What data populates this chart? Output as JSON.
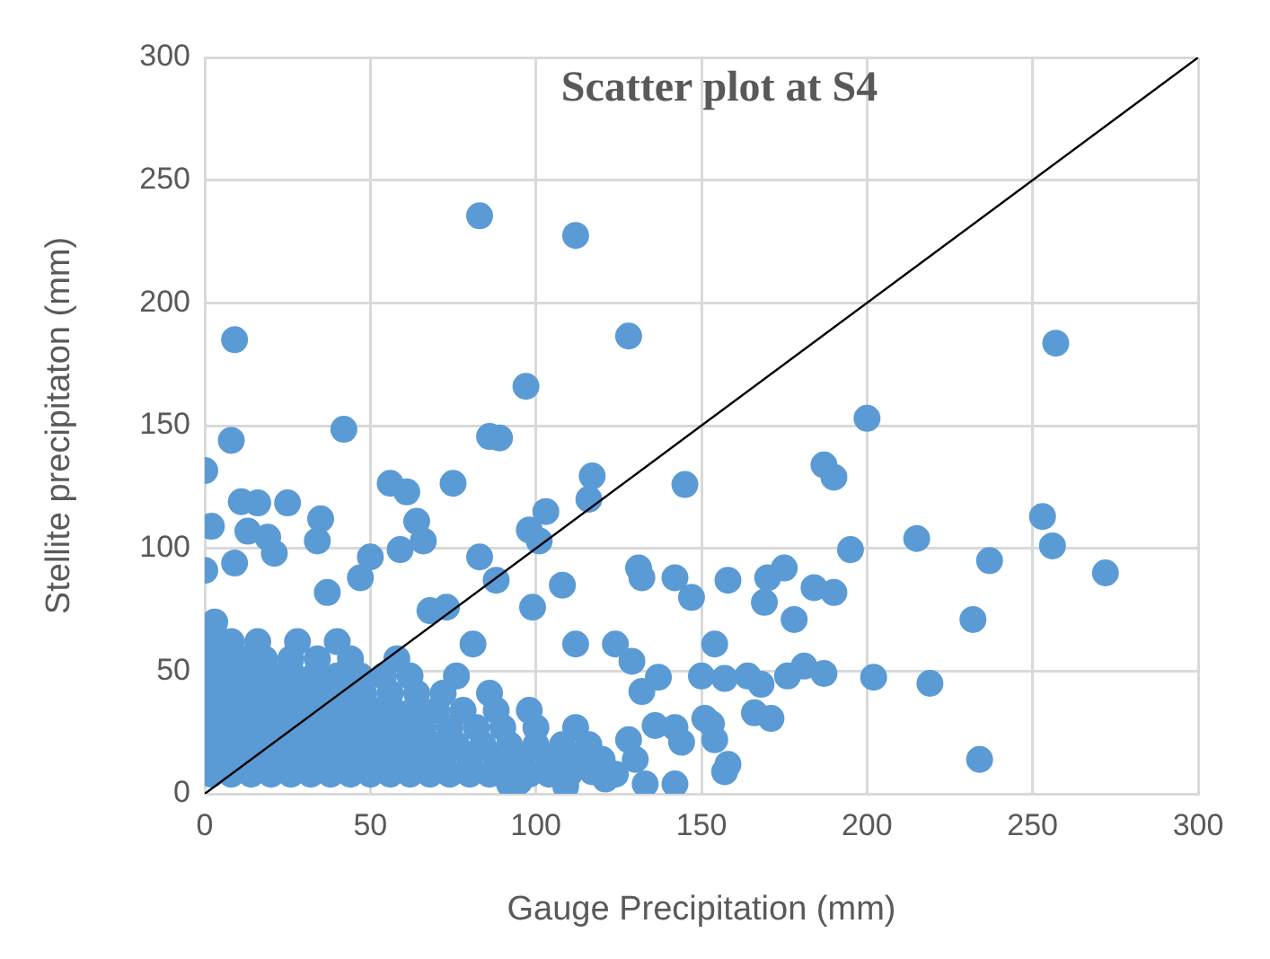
{
  "chart_data": {
    "type": "scatter",
    "title": "Scatter plot at S4",
    "xlabel": "Gauge Precipitation (mm)",
    "ylabel": "Stellite precipitaton (mm)",
    "xlim": [
      0,
      300
    ],
    "ylim": [
      0,
      300
    ],
    "xticks": [
      0,
      50,
      100,
      150,
      200,
      250,
      300
    ],
    "yticks": [
      0,
      50,
      100,
      150,
      200,
      250,
      300
    ],
    "grid": true,
    "legend": false,
    "series": [
      {
        "type": "scatter",
        "marker": "circle",
        "color": "#5b9bd5",
        "x": [
          83,
          112,
          9,
          128,
          257,
          97,
          200,
          42,
          8,
          86,
          89,
          0,
          187,
          190,
          117,
          56,
          61,
          75,
          145,
          116,
          11,
          16,
          25,
          35,
          34,
          2,
          13,
          19,
          21,
          103,
          98,
          101,
          215,
          253,
          256,
          237,
          272,
          195,
          175,
          184,
          190,
          170,
          169,
          178,
          232,
          158,
          142,
          147,
          131,
          132,
          108,
          99,
          112,
          0,
          9,
          3,
          59,
          66,
          50,
          64,
          83,
          88,
          73,
          47,
          37,
          68,
          81,
          124,
          129,
          137,
          132,
          150,
          157,
          154,
          142,
          144,
          164,
          176,
          168,
          181,
          187,
          202,
          219,
          166,
          171,
          151,
          154,
          153,
          136,
          128,
          133,
          142,
          157,
          158,
          234,
          117,
          121,
          95,
          109,
          92,
          2,
          8,
          14,
          20,
          26,
          32,
          38,
          44,
          50,
          56,
          62,
          68,
          74,
          80,
          86,
          92,
          98,
          104,
          110,
          124,
          0,
          6,
          12,
          18,
          24,
          30,
          36,
          42,
          48,
          54,
          60,
          66,
          72,
          80,
          88,
          96,
          104,
          112,
          120,
          130,
          3,
          9,
          15,
          21,
          27,
          33,
          39,
          45,
          51,
          57,
          63,
          69,
          76,
          84,
          92,
          100,
          108,
          116,
          0,
          6,
          12,
          18,
          24,
          30,
          36,
          42,
          48,
          54,
          60,
          66,
          74,
          82,
          90,
          100,
          112,
          3,
          9,
          15,
          21,
          27,
          33,
          39,
          45,
          51,
          57,
          63,
          70,
          78,
          88,
          98,
          0,
          6,
          12,
          18,
          24,
          30,
          36,
          42,
          48,
          56,
          64,
          72,
          86,
          3,
          9,
          15,
          21,
          27,
          33,
          40,
          47,
          54,
          62,
          76,
          0,
          6,
          12,
          18,
          26,
          34,
          44,
          58,
          2,
          8,
          16,
          28,
          40
        ],
        "values": [
          235.5,
          227.5,
          185,
          186.5,
          183.6,
          166,
          153,
          148.5,
          144,
          145.6,
          145,
          131.7,
          134,
          129,
          129.5,
          126.5,
          123,
          126.5,
          126,
          120,
          119,
          118.5,
          118.5,
          112,
          103,
          109,
          107,
          104.5,
          98,
          115,
          107.5,
          103,
          104,
          113,
          101,
          95,
          90,
          99.5,
          92,
          84,
          82,
          88,
          78,
          71,
          71,
          87,
          88,
          80,
          92,
          88,
          85,
          76,
          61,
          91,
          94,
          70,
          99.5,
          103,
          96.5,
          111,
          96.5,
          87,
          76,
          88,
          82,
          74.6,
          61,
          61,
          54,
          47.5,
          41.7,
          48,
          47,
          61,
          27,
          21,
          48,
          48,
          44.6,
          52,
          49,
          47.5,
          45,
          33,
          30.7,
          30.7,
          22,
          28.5,
          27.8,
          22,
          4,
          4,
          9,
          12,
          14,
          9,
          6,
          5,
          3,
          4,
          8,
          8,
          8,
          8,
          8,
          8,
          8,
          8,
          8,
          8,
          8,
          8,
          8,
          8,
          8,
          8,
          8,
          8,
          8,
          8,
          14,
          14,
          14,
          14,
          14,
          14,
          14,
          14,
          14,
          14,
          14,
          14,
          14,
          14,
          14,
          14,
          14,
          14,
          14,
          14,
          20,
          20,
          20,
          20,
          20,
          20,
          20,
          20,
          20,
          20,
          20,
          20,
          20,
          20,
          20,
          20,
          20,
          20,
          27,
          27,
          27,
          27,
          27,
          27,
          27,
          27,
          27,
          27,
          27,
          27,
          27,
          27,
          27,
          27,
          27,
          34,
          34,
          34,
          34,
          34,
          34,
          34,
          34,
          34,
          34,
          34,
          34,
          34,
          34,
          34,
          41,
          41,
          41,
          41,
          41,
          41,
          41,
          41,
          41,
          41,
          41,
          41,
          41,
          48,
          48,
          48,
          48,
          48,
          48,
          48,
          48,
          48,
          48,
          48,
          55,
          55,
          55,
          55,
          55,
          55,
          55,
          55,
          62,
          62,
          62,
          62,
          62
        ]
      },
      {
        "type": "line",
        "marker": "none",
        "color": "#000000",
        "x": [
          0,
          300
        ],
        "values": [
          0,
          300
        ]
      }
    ]
  }
}
